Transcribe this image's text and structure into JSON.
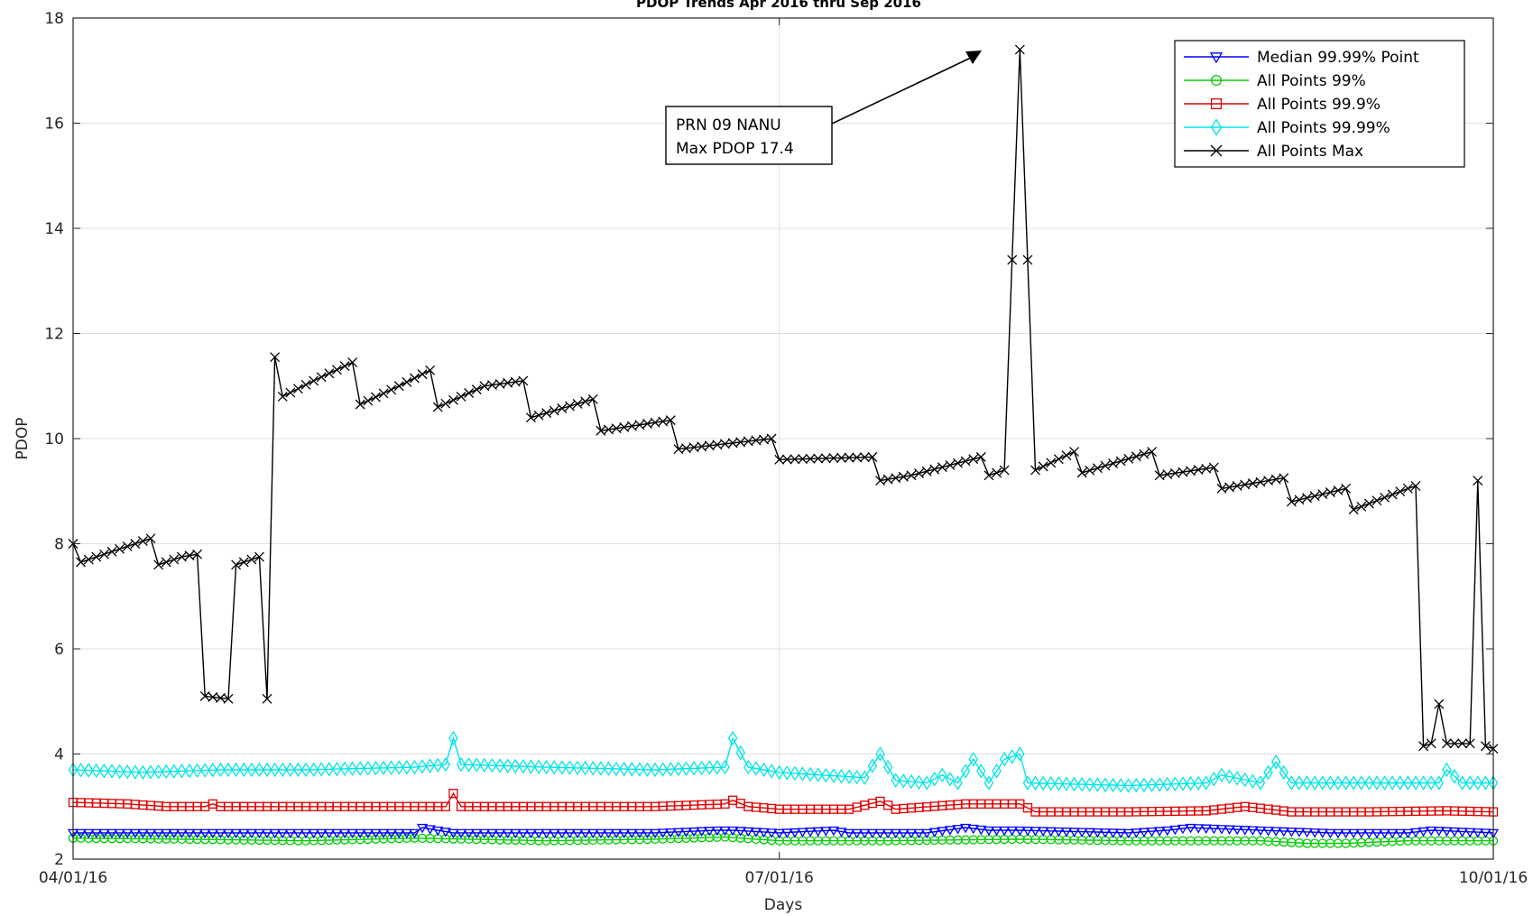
{
  "chart_data": {
    "type": "line",
    "title": "PDOP Trends Apr 2016 thru Sep 2016",
    "xlabel": "Days",
    "ylabel": "PDOP",
    "xlim": [
      "2016-04-01",
      "2016-10-01"
    ],
    "ylim": [
      2,
      18
    ],
    "x_ticks": [
      "04/01/16",
      "07/01/16",
      "10/01/16"
    ],
    "y_ticks": [
      2,
      4,
      6,
      8,
      10,
      12,
      14,
      16,
      18
    ],
    "grid": true,
    "legend_position": "top-right",
    "annotation": {
      "lines": [
        "PRN 09 NANU",
        "Max PDOP 17.4"
      ],
      "points_to": {
        "x": "2016-08-01",
        "y": 17.4
      }
    },
    "series": [
      {
        "name": "Median 99.99% Point",
        "color": "#0000ff",
        "marker": "triangle-down",
        "points": [
          [
            "2016-04-01",
            2.5
          ],
          [
            "2016-04-10",
            2.5
          ],
          [
            "2016-04-20",
            2.5
          ],
          [
            "2016-05-01",
            2.5
          ],
          [
            "2016-05-15",
            2.5
          ],
          [
            "2016-05-16",
            2.6
          ],
          [
            "2016-05-20",
            2.5
          ],
          [
            "2016-06-01",
            2.5
          ],
          [
            "2016-06-15",
            2.5
          ],
          [
            "2016-06-23",
            2.55
          ],
          [
            "2016-06-25",
            2.55
          ],
          [
            "2016-07-01",
            2.5
          ],
          [
            "2016-07-08",
            2.55
          ],
          [
            "2016-07-10",
            2.5
          ],
          [
            "2016-07-20",
            2.5
          ],
          [
            "2016-07-25",
            2.6
          ],
          [
            "2016-07-28",
            2.55
          ],
          [
            "2016-08-01",
            2.55
          ],
          [
            "2016-08-15",
            2.5
          ],
          [
            "2016-08-20",
            2.55
          ],
          [
            "2016-08-23",
            2.6
          ],
          [
            "2016-09-01",
            2.55
          ],
          [
            "2016-09-10",
            2.5
          ],
          [
            "2016-09-20",
            2.5
          ],
          [
            "2016-09-23",
            2.55
          ],
          [
            "2016-10-01",
            2.5
          ]
        ]
      },
      {
        "name": "All Points 99%",
        "color": "#00cc00",
        "marker": "circle",
        "points": [
          [
            "2016-04-01",
            2.4
          ],
          [
            "2016-04-15",
            2.38
          ],
          [
            "2016-05-01",
            2.35
          ],
          [
            "2016-05-15",
            2.4
          ],
          [
            "2016-06-01",
            2.35
          ],
          [
            "2016-06-15",
            2.38
          ],
          [
            "2016-06-24",
            2.42
          ],
          [
            "2016-07-01",
            2.35
          ],
          [
            "2016-07-15",
            2.35
          ],
          [
            "2016-08-01",
            2.38
          ],
          [
            "2016-08-15",
            2.35
          ],
          [
            "2016-09-01",
            2.35
          ],
          [
            "2016-09-07",
            2.3
          ],
          [
            "2016-09-12",
            2.3
          ],
          [
            "2016-09-20",
            2.35
          ],
          [
            "2016-10-01",
            2.35
          ]
        ]
      },
      {
        "name": "All Points 99.9%",
        "color": "#e00000",
        "marker": "square",
        "points": [
          [
            "2016-04-01",
            3.08
          ],
          [
            "2016-04-08",
            3.05
          ],
          [
            "2016-04-13",
            3.0
          ],
          [
            "2016-04-18",
            3.0
          ],
          [
            "2016-04-19",
            3.05
          ],
          [
            "2016-04-20",
            3.0
          ],
          [
            "2016-05-01",
            3.0
          ],
          [
            "2016-05-15",
            3.0
          ],
          [
            "2016-05-19",
            3.0
          ],
          [
            "2016-05-20",
            3.25
          ],
          [
            "2016-05-21",
            3.0
          ],
          [
            "2016-06-01",
            3.0
          ],
          [
            "2016-06-15",
            3.0
          ],
          [
            "2016-06-24",
            3.05
          ],
          [
            "2016-06-25",
            3.12
          ],
          [
            "2016-06-27",
            3.0
          ],
          [
            "2016-07-01",
            2.95
          ],
          [
            "2016-07-10",
            2.95
          ],
          [
            "2016-07-14",
            3.1
          ],
          [
            "2016-07-16",
            2.95
          ],
          [
            "2016-07-25",
            3.05
          ],
          [
            "2016-07-28",
            3.05
          ],
          [
            "2016-08-01",
            3.05
          ],
          [
            "2016-08-03",
            2.9
          ],
          [
            "2016-08-15",
            2.9
          ],
          [
            "2016-08-25",
            2.92
          ],
          [
            "2016-08-30",
            3.0
          ],
          [
            "2016-09-05",
            2.9
          ],
          [
            "2016-09-15",
            2.9
          ],
          [
            "2016-09-25",
            2.92
          ],
          [
            "2016-10-01",
            2.9
          ]
        ]
      },
      {
        "name": "All Points 99.99%",
        "color": "#00e5e5",
        "marker": "diamond",
        "points": [
          [
            "2016-04-01",
            3.7
          ],
          [
            "2016-04-10",
            3.65
          ],
          [
            "2016-04-20",
            3.7
          ],
          [
            "2016-05-01",
            3.7
          ],
          [
            "2016-05-15",
            3.75
          ],
          [
            "2016-05-19",
            3.8
          ],
          [
            "2016-05-20",
            4.3
          ],
          [
            "2016-05-21",
            3.8
          ],
          [
            "2016-06-01",
            3.75
          ],
          [
            "2016-06-15",
            3.7
          ],
          [
            "2016-06-24",
            3.75
          ],
          [
            "2016-06-25",
            4.3
          ],
          [
            "2016-06-27",
            3.75
          ],
          [
            "2016-07-01",
            3.65
          ],
          [
            "2016-07-12",
            3.55
          ],
          [
            "2016-07-14",
            4.0
          ],
          [
            "2016-07-16",
            3.5
          ],
          [
            "2016-07-20",
            3.45
          ],
          [
            "2016-07-22",
            3.6
          ],
          [
            "2016-07-24",
            3.45
          ],
          [
            "2016-07-26",
            3.9
          ],
          [
            "2016-07-28",
            3.45
          ],
          [
            "2016-07-30",
            3.9
          ],
          [
            "2016-08-01",
            4.0
          ],
          [
            "2016-08-02",
            3.45
          ],
          [
            "2016-08-15",
            3.4
          ],
          [
            "2016-08-25",
            3.45
          ],
          [
            "2016-08-27",
            3.6
          ],
          [
            "2016-09-01",
            3.45
          ],
          [
            "2016-09-03",
            3.85
          ],
          [
            "2016-09-05",
            3.45
          ],
          [
            "2016-09-15",
            3.45
          ],
          [
            "2016-09-24",
            3.45
          ],
          [
            "2016-09-25",
            3.7
          ],
          [
            "2016-09-27",
            3.45
          ],
          [
            "2016-10-01",
            3.45
          ]
        ]
      },
      {
        "name": "All Points Max",
        "color": "#000000",
        "marker": "x",
        "points": [
          [
            "2016-04-01",
            8.0
          ],
          [
            "2016-04-02",
            7.65
          ],
          [
            "2016-04-05",
            7.8
          ],
          [
            "2016-04-08",
            7.95
          ],
          [
            "2016-04-11",
            8.1
          ],
          [
            "2016-04-12",
            7.6
          ],
          [
            "2016-04-15",
            7.75
          ],
          [
            "2016-04-17",
            7.8
          ],
          [
            "2016-04-18",
            5.1
          ],
          [
            "2016-04-21",
            5.05
          ],
          [
            "2016-04-22",
            7.6
          ],
          [
            "2016-04-25",
            7.75
          ],
          [
            "2016-04-26",
            5.05
          ],
          [
            "2016-04-27",
            11.55
          ],
          [
            "2016-04-28",
            10.8
          ],
          [
            "2016-05-02",
            11.1
          ],
          [
            "2016-05-07",
            11.45
          ],
          [
            "2016-05-08",
            10.65
          ],
          [
            "2016-05-13",
            11.0
          ],
          [
            "2016-05-17",
            11.3
          ],
          [
            "2016-05-18",
            10.6
          ],
          [
            "2016-05-24",
            11.0
          ],
          [
            "2016-05-29",
            11.1
          ],
          [
            "2016-05-30",
            10.4
          ],
          [
            "2016-06-07",
            10.75
          ],
          [
            "2016-06-08",
            10.15
          ],
          [
            "2016-06-17",
            10.35
          ],
          [
            "2016-06-18",
            9.8
          ],
          [
            "2016-06-30",
            10.0
          ],
          [
            "2016-07-01",
            9.6
          ],
          [
            "2016-07-13",
            9.65
          ],
          [
            "2016-07-14",
            9.2
          ],
          [
            "2016-07-18",
            9.3
          ],
          [
            "2016-07-27",
            9.65
          ],
          [
            "2016-07-28",
            9.3
          ],
          [
            "2016-07-30",
            9.4
          ],
          [
            "2016-08-01",
            17.4
          ],
          [
            "2016-08-03",
            9.4
          ],
          [
            "2016-08-08",
            9.75
          ],
          [
            "2016-08-09",
            9.35
          ],
          [
            "2016-08-18",
            9.75
          ],
          [
            "2016-08-19",
            9.3
          ],
          [
            "2016-08-26",
            9.45
          ],
          [
            "2016-08-27",
            9.05
          ],
          [
            "2016-09-04",
            9.25
          ],
          [
            "2016-09-05",
            8.8
          ],
          [
            "2016-09-12",
            9.05
          ],
          [
            "2016-09-13",
            8.65
          ],
          [
            "2016-09-20",
            9.05
          ],
          [
            "2016-09-21",
            9.1
          ],
          [
            "2016-09-22",
            4.15
          ],
          [
            "2016-09-23",
            4.2
          ],
          [
            "2016-09-24",
            4.95
          ],
          [
            "2016-09-25",
            4.2
          ],
          [
            "2016-09-28",
            4.2
          ],
          [
            "2016-09-29",
            9.2
          ],
          [
            "2016-09-30",
            4.15
          ],
          [
            "2016-10-01",
            4.1
          ]
        ]
      }
    ]
  }
}
